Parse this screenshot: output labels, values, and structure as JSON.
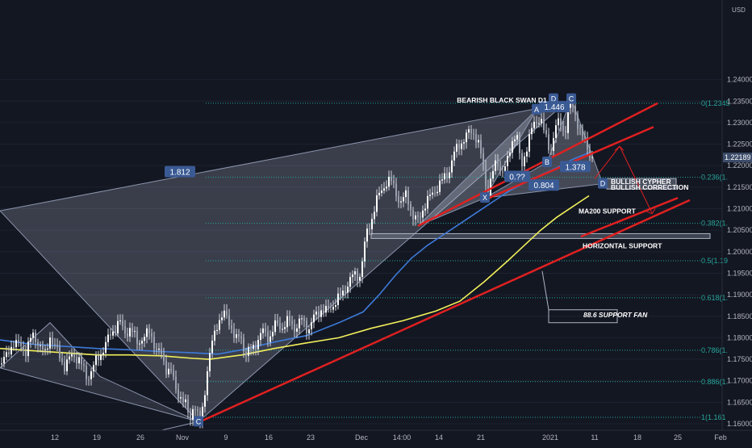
{
  "chart_data": {
    "type": "candlestick",
    "instrument_currency": "USD",
    "last_price": "1.22189",
    "ylim": [
      1.1585,
      1.2585
    ],
    "y_ticks": [
      "1.16000",
      "1.16500",
      "1.17000",
      "1.17500",
      "1.18000",
      "1.18500",
      "1.19000",
      "1.19500",
      "1.20000",
      "1.20500",
      "1.21000",
      "1.21500",
      "1.22000",
      "1.22500",
      "1.23000",
      "1.23500",
      "1.24000"
    ],
    "x_tick_labels": [
      "12",
      "19",
      "26",
      "Nov",
      "9",
      "16",
      "23",
      "Dec",
      "14:00",
      "14",
      "21",
      "2021",
      "11",
      "18",
      "25",
      "Feb"
    ],
    "price_path": [
      [
        0,
        1.174
      ],
      [
        8,
        1.1755
      ],
      [
        16,
        1.179
      ],
      [
        24,
        1.1782
      ],
      [
        32,
        1.177
      ],
      [
        40,
        1.1805
      ],
      [
        48,
        1.1788
      ],
      [
        56,
        1.176
      ],
      [
        62,
        1.1805
      ],
      [
        70,
        1.177
      ],
      [
        80,
        1.1735
      ],
      [
        90,
        1.176
      ],
      [
        98,
        1.175
      ],
      [
        108,
        1.1705
      ],
      [
        116,
        1.1735
      ],
      [
        124,
        1.176
      ],
      [
        132,
        1.179
      ],
      [
        140,
        1.1815
      ],
      [
        148,
        1.184
      ],
      [
        154,
        1.181
      ],
      [
        162,
        1.1822
      ],
      [
        170,
        1.179
      ],
      [
        178,
        1.18
      ],
      [
        186,
        1.1815
      ],
      [
        194,
        1.177
      ],
      [
        200,
        1.176
      ],
      [
        206,
        1.173
      ],
      [
        212,
        1.172
      ],
      [
        218,
        1.168
      ],
      [
        224,
        1.1662
      ],
      [
        230,
        1.1642
      ],
      [
        236,
        1.1615
      ],
      [
        240,
        1.165
      ],
      [
        244,
        1.162
      ],
      [
        248,
        1.1605
      ],
      [
        252,
        1.165
      ],
      [
        256,
        1.171
      ],
      [
        262,
        1.178
      ],
      [
        268,
        1.183
      ],
      [
        274,
        1.1845
      ],
      [
        280,
        1.1855
      ],
      [
        286,
        1.183
      ],
      [
        292,
        1.179
      ],
      [
        298,
        1.181
      ],
      [
        304,
        1.176
      ],
      [
        310,
        1.177
      ],
      [
        318,
        1.179
      ],
      [
        326,
        1.1815
      ],
      [
        334,
        1.18
      ],
      [
        342,
        1.1832
      ],
      [
        350,
        1.1825
      ],
      [
        358,
        1.184
      ],
      [
        366,
        1.1822
      ],
      [
        374,
        1.1842
      ],
      [
        382,
        1.1818
      ],
      [
        390,
        1.185
      ],
      [
        398,
        1.1866
      ],
      [
        406,
        1.186
      ],
      [
        414,
        1.188
      ],
      [
        422,
        1.1896
      ],
      [
        430,
        1.1922
      ],
      [
        438,
        1.1946
      ],
      [
        446,
        1.1945
      ],
      [
        450,
        1.199
      ],
      [
        454,
        1.204
      ],
      [
        460,
        1.2072
      ],
      [
        466,
        1.2115
      ],
      [
        472,
        1.214
      ],
      [
        478,
        1.216
      ],
      [
        484,
        1.2165
      ],
      [
        490,
        1.2145
      ],
      [
        496,
        1.211
      ],
      [
        504,
        1.2135
      ],
      [
        512,
        1.208
      ],
      [
        518,
        1.2072
      ],
      [
        526,
        1.2108
      ],
      [
        534,
        1.213
      ],
      [
        542,
        1.215
      ],
      [
        550,
        1.217
      ],
      [
        556,
        1.2185
      ],
      [
        562,
        1.2225
      ],
      [
        568,
        1.2245
      ],
      [
        574,
        1.226
      ],
      [
        580,
        1.2274
      ],
      [
        586,
        1.228
      ],
      [
        592,
        1.226
      ],
      [
        598,
        1.2205
      ],
      [
        604,
        1.2135
      ],
      [
        610,
        1.218
      ],
      [
        616,
        1.221
      ],
      [
        622,
        1.2185
      ],
      [
        628,
        1.22
      ],
      [
        634,
        1.2255
      ],
      [
        640,
        1.228
      ],
      [
        646,
        1.219
      ],
      [
        652,
        1.224
      ],
      [
        658,
        1.228
      ],
      [
        664,
        1.23
      ],
      [
        670,
        1.2315
      ],
      [
        676,
        1.2265
      ],
      [
        682,
        1.223
      ],
      [
        688,
        1.229
      ],
      [
        694,
        1.23
      ],
      [
        700,
        1.2275
      ],
      [
        704,
        1.233
      ],
      [
        708,
        1.2345
      ],
      [
        712,
        1.2325
      ],
      [
        716,
        1.23
      ],
      [
        720,
        1.2275
      ],
      [
        724,
        1.226
      ],
      [
        728,
        1.224
      ],
      [
        732,
        1.2225
      ],
      [
        735,
        1.2219
      ]
    ],
    "ma200_path": [
      [
        0,
        1.1775
      ],
      [
        40,
        1.177
      ],
      [
        80,
        1.1765
      ],
      [
        120,
        1.176
      ],
      [
        160,
        1.176
      ],
      [
        200,
        1.1758
      ],
      [
        240,
        1.1752
      ],
      [
        260,
        1.175
      ],
      [
        300,
        1.176
      ],
      [
        340,
        1.1775
      ],
      [
        380,
        1.1788
      ],
      [
        420,
        1.18
      ],
      [
        460,
        1.1822
      ],
      [
        500,
        1.184
      ],
      [
        540,
        1.1862
      ],
      [
        570,
        1.1885
      ],
      [
        600,
        1.193
      ],
      [
        630,
        1.198
      ],
      [
        650,
        1.2015
      ],
      [
        670,
        1.205
      ],
      [
        690,
        1.208
      ],
      [
        710,
        1.2105
      ],
      [
        730,
        1.213
      ]
    ],
    "ma_blue_path": [
      [
        0,
        1.1795
      ],
      [
        40,
        1.1785
      ],
      [
        80,
        1.178
      ],
      [
        120,
        1.1775
      ],
      [
        160,
        1.1772
      ],
      [
        200,
        1.1768
      ],
      [
        240,
        1.1765
      ],
      [
        270,
        1.1762
      ],
      [
        300,
        1.1772
      ],
      [
        340,
        1.179
      ],
      [
        380,
        1.1805
      ],
      [
        420,
        1.1835
      ],
      [
        450,
        1.186
      ],
      [
        470,
        1.19
      ],
      [
        490,
        1.1945
      ],
      [
        510,
        1.1985
      ],
      [
        530,
        1.2015
      ],
      [
        550,
        1.204
      ],
      [
        570,
        1.2065
      ],
      [
        590,
        1.209
      ],
      [
        610,
        1.2115
      ],
      [
        630,
        1.214
      ],
      [
        650,
        1.216
      ],
      [
        670,
        1.2178
      ],
      [
        690,
        1.2195
      ],
      [
        710,
        1.2215
      ],
      [
        730,
        1.223
      ]
    ],
    "fib_levels": [
      {
        "label": "0(1.2345",
        "value": 1.2345
      },
      {
        "label": "0.236(1.",
        "value": 1.2173
      },
      {
        "label": "0.382(1.",
        "value": 1.2066
      },
      {
        "label": "0.5(1.19",
        "value": 1.1979
      },
      {
        "label": "0.618(1.",
        "value": 1.1893
      },
      {
        "label": "0.786(1.",
        "value": 1.1771
      },
      {
        "label": "0.886(1.",
        "value": 1.1698
      },
      {
        "label": "1(1.161",
        "value": 1.1615
      }
    ],
    "pattern_points": [
      {
        "label": "C",
        "x": 246,
        "y": 1.1605
      },
      {
        "label": "X",
        "x": 601,
        "y": 1.2125
      },
      {
        "label": "A",
        "x": 665,
        "y": 1.233
      },
      {
        "label": "B",
        "x": 678,
        "y": 1.2208
      },
      {
        "label": "C",
        "x": 708,
        "y": 1.2355
      },
      {
        "label": "D",
        "x": 686,
        "y": 1.2355
      },
      {
        "label": "D",
        "x": 747,
        "y": 1.2158
      }
    ],
    "ratios": [
      {
        "label": "1.812",
        "x": 223,
        "y": 1.2186
      },
      {
        "label": "1.446",
        "x": 687,
        "y": 1.2337
      },
      {
        "label": "1.378",
        "x": 713,
        "y": 1.2198
      },
      {
        "label": "0.804",
        "x": 674,
        "y": 1.2155
      },
      {
        "label": "0.??",
        "x": 641,
        "y": 1.2175
      }
    ],
    "annotations": [
      {
        "text": "BEARISH BLACK SWAN D1",
        "x": 622,
        "y": 1.2352
      },
      {
        "text": "BULLISH CYPHER",
        "x": 757,
        "y": 1.2163
      },
      {
        "text": "BULLISH CORRECTION",
        "x": 757,
        "y": 1.215
      },
      {
        "text": "MA200 SUPPORT",
        "x": 717,
        "y": 1.2094
      },
      {
        "text": "HORIZONTAL SUPPORT",
        "x": 722,
        "y": 1.2014
      },
      {
        "text": "88.6 SUPPORT FAN",
        "x": 723,
        "y": 1.1853
      }
    ],
    "colors": {
      "background": "#131722",
      "candle": "#d1d4dc",
      "ma200": "#f2f05a",
      "ma_blue": "#3d7bd9",
      "trendline": "#e02020",
      "fib": "#26a69a",
      "label_box": "#3a5a94"
    }
  }
}
